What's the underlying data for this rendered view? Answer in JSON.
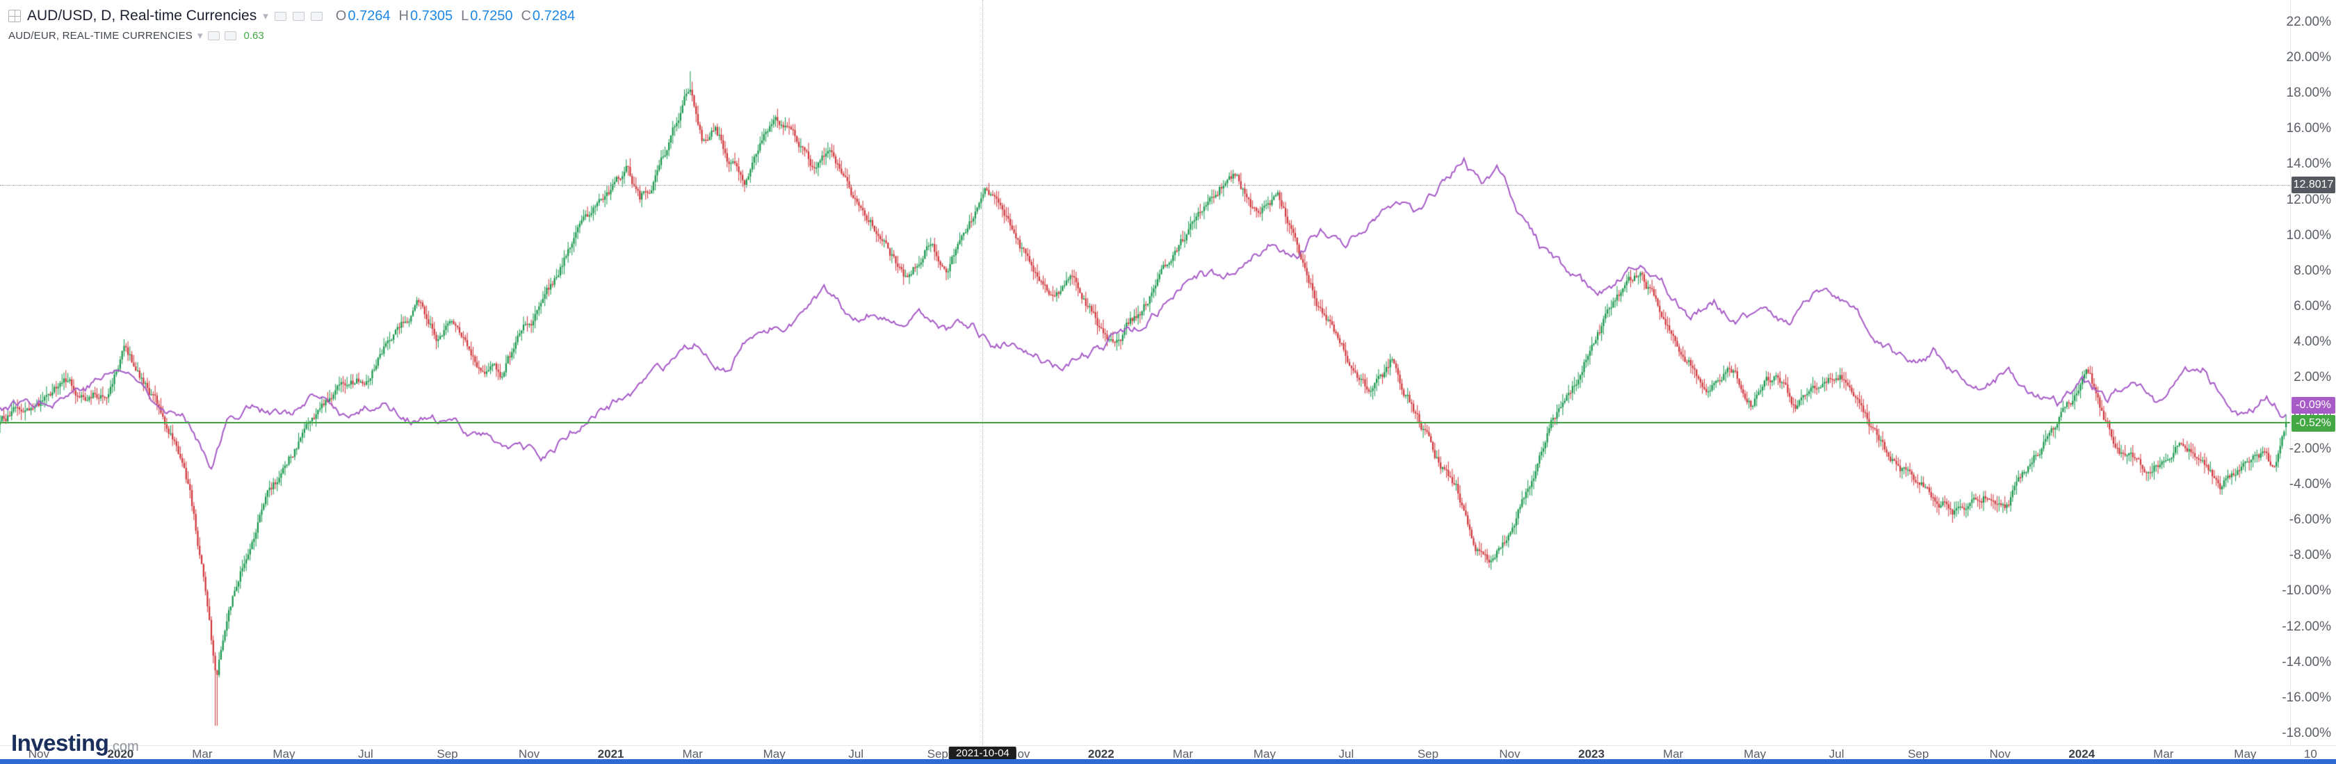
{
  "app": {
    "bottom_bar_color": "#2e6ad1"
  },
  "legend": {
    "primary": {
      "title": "AUD/USD, D, Real-time Currencies",
      "ohlc": {
        "o_label": "O",
        "o_value": "0.7264",
        "h_label": "H",
        "h_value": "0.7305",
        "l_label": "L",
        "l_value": "0.7250",
        "c_label": "C",
        "c_value": "0.7284"
      },
      "ohlc_color": "#1e88e5"
    },
    "compare": {
      "title": "AUD/EUR, REAL-TIME CURRENCIES",
      "value": "0.63",
      "value_color": "#43a843"
    }
  },
  "footer": {
    "logo_main": "Investing",
    "logo_suffix": ".com"
  },
  "icons": {
    "chevron_glyph": "▾"
  },
  "chart_data": {
    "type": "candlestick",
    "description": "AUD/USD daily candlesticks compared with AUD/EUR line, percentage scale, Nov 2019 - Jun 2024",
    "y_axis": {
      "unit": "%",
      "max_pct": 23.2,
      "min_pct": -18.7,
      "ticks": [
        {
          "label": "22.00%",
          "value": 22
        },
        {
          "label": "20.00%",
          "value": 20
        },
        {
          "label": "18.00%",
          "value": 18
        },
        {
          "label": "16.00%",
          "value": 16
        },
        {
          "label": "14.00%",
          "value": 14
        },
        {
          "label": "12.00%",
          "value": 12
        },
        {
          "label": "10.00%",
          "value": 10
        },
        {
          "label": "8.00%",
          "value": 8
        },
        {
          "label": "6.00%",
          "value": 6
        },
        {
          "label": "4.00%",
          "value": 4
        },
        {
          "label": "2.00%",
          "value": 2
        },
        {
          "label": "0.00%",
          "value": 0
        },
        {
          "label": "-2.00%",
          "value": -2
        },
        {
          "label": "-4.00%",
          "value": -4
        },
        {
          "label": "-6.00%",
          "value": -6
        },
        {
          "label": "-8.00%",
          "value": -8
        },
        {
          "label": "-10.00%",
          "value": -10
        },
        {
          "label": "-12.00%",
          "value": -12
        },
        {
          "label": "-14.00%",
          "value": -14
        },
        {
          "label": "-16.00%",
          "value": -16
        },
        {
          "label": "-18.00%",
          "value": -18
        }
      ]
    },
    "x_axis": {
      "min_month": -0.95,
      "max_month": 55.1,
      "month_index_epoch": "2019-11",
      "ticks": [
        {
          "label": "Nov",
          "m": 0
        },
        {
          "label": "2020",
          "m": 2
        },
        {
          "label": "Mar",
          "m": 4
        },
        {
          "label": "May",
          "m": 6
        },
        {
          "label": "Jul",
          "m": 8
        },
        {
          "label": "Sep",
          "m": 10
        },
        {
          "label": "Nov",
          "m": 12
        },
        {
          "label": "2021",
          "m": 14
        },
        {
          "label": "Mar",
          "m": 16
        },
        {
          "label": "May",
          "m": 18
        },
        {
          "label": "Jul",
          "m": 20
        },
        {
          "label": "Sep",
          "m": 22
        },
        {
          "label": "Nov",
          "m": 24
        },
        {
          "label": "2022",
          "m": 26
        },
        {
          "label": "Mar",
          "m": 28
        },
        {
          "label": "May",
          "m": 30
        },
        {
          "label": "Jul",
          "m": 32
        },
        {
          "label": "Sep",
          "m": 34
        },
        {
          "label": "Nov",
          "m": 36
        },
        {
          "label": "2023",
          "m": 38
        },
        {
          "label": "Mar",
          "m": 40
        },
        {
          "label": "May",
          "m": 42
        },
        {
          "label": "Jul",
          "m": 44
        },
        {
          "label": "Sep",
          "m": 46
        },
        {
          "label": "Nov",
          "m": 48
        },
        {
          "label": "2024",
          "m": 50
        },
        {
          "label": "Mar",
          "m": 52
        },
        {
          "label": "May",
          "m": 54
        },
        {
          "label": "10",
          "m": 55.6
        }
      ]
    },
    "crosshair": {
      "m": 23.1,
      "date_label": "2021-10-04",
      "label_bg": "#1e1e1e"
    },
    "price_lines": [
      {
        "id": "level-line",
        "value_pct": 12.8,
        "axis_label": "12.8017",
        "line_style": "dotted",
        "color": "#9aa0a6",
        "label_bg": "#55585e",
        "badge_offset_y": 0
      },
      {
        "id": "last-close",
        "value_pct": -0.52,
        "axis_label": "-0.52%",
        "line_style": "solid",
        "color": "#43a843",
        "label_bg": "#43a843",
        "badge_offset_y": 2
      }
    ],
    "axis_badges": [
      {
        "id": "compare-last",
        "value_pct": -0.09,
        "label": "-0.09%",
        "bg": "#a75bc7",
        "badge_offset_y": -13
      }
    ],
    "bar_count": 1180,
    "series": [
      {
        "name": "AUD/USD",
        "style": "candles",
        "up_color": "#149649",
        "down_color": "#cf3338",
        "last_value_pct": -0.52,
        "keypoints_pct": [
          [
            -1.0,
            -0.3
          ],
          [
            0,
            0.2
          ],
          [
            0.7,
            1.8
          ],
          [
            1.2,
            0.6
          ],
          [
            1.7,
            1.4
          ],
          [
            2.1,
            3.6
          ],
          [
            2.5,
            2.0
          ],
          [
            2.9,
            0.2
          ],
          [
            3.3,
            -1.4
          ],
          [
            3.7,
            -4.5
          ],
          [
            4.05,
            -9.5
          ],
          [
            4.35,
            -15.3
          ],
          [
            4.6,
            -11.5
          ],
          [
            5.0,
            -8.6
          ],
          [
            5.5,
            -5.2
          ],
          [
            6.0,
            -3.2
          ],
          [
            6.5,
            -1.2
          ],
          [
            7.0,
            0.6
          ],
          [
            7.5,
            1.6
          ],
          [
            8.0,
            2.2
          ],
          [
            8.6,
            4.4
          ],
          [
            9.3,
            6.4
          ],
          [
            9.8,
            4.2
          ],
          [
            10.2,
            5.2
          ],
          [
            10.8,
            3.0
          ],
          [
            11.3,
            2.2
          ],
          [
            11.9,
            4.8
          ],
          [
            12.4,
            6.2
          ],
          [
            13.0,
            9.6
          ],
          [
            13.6,
            11.2
          ],
          [
            14.1,
            12.8
          ],
          [
            14.4,
            13.6
          ],
          [
            14.7,
            11.8
          ],
          [
            15.1,
            13.2
          ],
          [
            15.6,
            16.2
          ],
          [
            15.95,
            18.4
          ],
          [
            16.25,
            15.2
          ],
          [
            16.55,
            16.4
          ],
          [
            16.9,
            14.2
          ],
          [
            17.3,
            13.2
          ],
          [
            17.7,
            15.4
          ],
          [
            18.1,
            16.2
          ],
          [
            18.5,
            15.6
          ],
          [
            19.0,
            13.6
          ],
          [
            19.4,
            14.4
          ],
          [
            20.0,
            11.6
          ],
          [
            20.6,
            10.0
          ],
          [
            21.2,
            7.4
          ],
          [
            21.7,
            9.2
          ],
          [
            22.2,
            8.2
          ],
          [
            22.8,
            10.6
          ],
          [
            23.2,
            12.4
          ],
          [
            23.7,
            10.4
          ],
          [
            24.2,
            8.4
          ],
          [
            24.8,
            6.6
          ],
          [
            25.3,
            7.6
          ],
          [
            25.9,
            5.0
          ],
          [
            26.3,
            3.8
          ],
          [
            27.0,
            5.8
          ],
          [
            27.7,
            8.2
          ],
          [
            28.3,
            10.4
          ],
          [
            28.9,
            12.6
          ],
          [
            29.3,
            13.4
          ],
          [
            29.8,
            11.0
          ],
          [
            30.3,
            12.2
          ],
          [
            30.9,
            8.6
          ],
          [
            31.5,
            5.2
          ],
          [
            32.1,
            2.6
          ],
          [
            32.6,
            0.8
          ],
          [
            33.1,
            2.8
          ],
          [
            33.6,
            0.4
          ],
          [
            34.2,
            -2.6
          ],
          [
            34.7,
            -4.4
          ],
          [
            35.2,
            -7.4
          ],
          [
            35.6,
            -8.3
          ],
          [
            36.0,
            -6.8
          ],
          [
            36.5,
            -4.0
          ],
          [
            37.0,
            -0.8
          ],
          [
            37.6,
            1.6
          ],
          [
            38.1,
            4.4
          ],
          [
            38.7,
            6.6
          ],
          [
            39.2,
            7.6
          ],
          [
            39.8,
            5.4
          ],
          [
            40.3,
            3.2
          ],
          [
            40.9,
            1.2
          ],
          [
            41.4,
            2.8
          ],
          [
            41.9,
            0.6
          ],
          [
            42.5,
            2.2
          ],
          [
            43.0,
            0.2
          ],
          [
            43.6,
            1.6
          ],
          [
            44.1,
            2.4
          ],
          [
            44.7,
            -0.4
          ],
          [
            45.3,
            -2.4
          ],
          [
            45.9,
            -3.8
          ],
          [
            46.5,
            -4.8
          ],
          [
            47.1,
            -5.8
          ],
          [
            47.6,
            -4.6
          ],
          [
            48.1,
            -5.4
          ],
          [
            48.7,
            -3.0
          ],
          [
            49.3,
            -0.8
          ],
          [
            49.9,
            0.8
          ],
          [
            50.2,
            2.0
          ],
          [
            50.6,
            -0.6
          ],
          [
            51.1,
            -2.6
          ],
          [
            51.7,
            -3.4
          ],
          [
            52.3,
            -1.6
          ],
          [
            52.9,
            -2.8
          ],
          [
            53.4,
            -4.4
          ],
          [
            53.9,
            -3.0
          ],
          [
            54.4,
            -2.2
          ],
          [
            54.7,
            -3.2
          ],
          [
            55.0,
            -0.52
          ]
        ]
      },
      {
        "name": "AUD/EUR",
        "style": "line",
        "color": "#a75bc7",
        "last_value_pct": -0.09,
        "keypoints_pct": [
          [
            -1.0,
            0.3
          ],
          [
            0,
            0.8
          ],
          [
            1.0,
            1.6
          ],
          [
            2.0,
            2.5
          ],
          [
            2.6,
            1.4
          ],
          [
            3.2,
            0.4
          ],
          [
            3.8,
            -0.8
          ],
          [
            4.2,
            -2.6
          ],
          [
            4.6,
            -0.4
          ],
          [
            5.2,
            0.6
          ],
          [
            6.0,
            -0.2
          ],
          [
            6.8,
            0.6
          ],
          [
            7.6,
            -0.4
          ],
          [
            8.4,
            0.6
          ],
          [
            9.2,
            -0.2
          ],
          [
            10.0,
            -0.8
          ],
          [
            10.8,
            -1.2
          ],
          [
            11.6,
            -1.8
          ],
          [
            12.3,
            -2.8
          ],
          [
            13.0,
            -1.2
          ],
          [
            13.8,
            0.2
          ],
          [
            14.6,
            1.2
          ],
          [
            15.4,
            2.2
          ],
          [
            16.2,
            3.6
          ],
          [
            16.8,
            2.8
          ],
          [
            17.4,
            4.2
          ],
          [
            18.0,
            4.8
          ],
          [
            18.6,
            5.6
          ],
          [
            19.2,
            6.6
          ],
          [
            19.8,
            5.4
          ],
          [
            20.4,
            5.9
          ],
          [
            21.0,
            4.6
          ],
          [
            21.6,
            5.2
          ],
          [
            22.2,
            4.4
          ],
          [
            22.8,
            5.0
          ],
          [
            23.4,
            3.8
          ],
          [
            24.0,
            4.2
          ],
          [
            24.6,
            3.2
          ],
          [
            25.2,
            2.6
          ],
          [
            26.0,
            3.6
          ],
          [
            26.8,
            4.6
          ],
          [
            27.6,
            6.2
          ],
          [
            28.4,
            7.8
          ],
          [
            29.0,
            7.2
          ],
          [
            29.6,
            8.4
          ],
          [
            30.2,
            9.6
          ],
          [
            30.8,
            9.0
          ],
          [
            31.4,
            10.4
          ],
          [
            32.0,
            9.4
          ],
          [
            32.6,
            11.0
          ],
          [
            33.2,
            12.2
          ],
          [
            33.8,
            11.4
          ],
          [
            34.4,
            13.0
          ],
          [
            34.9,
            14.2
          ],
          [
            35.3,
            12.6
          ],
          [
            35.7,
            13.4
          ],
          [
            36.2,
            11.0
          ],
          [
            36.8,
            9.0
          ],
          [
            37.4,
            7.6
          ],
          [
            38.0,
            6.4
          ],
          [
            38.6,
            7.4
          ],
          [
            39.2,
            8.2
          ],
          [
            39.8,
            7.0
          ],
          [
            40.4,
            5.6
          ],
          [
            41.0,
            6.4
          ],
          [
            41.6,
            5.2
          ],
          [
            42.2,
            6.0
          ],
          [
            42.8,
            5.0
          ],
          [
            43.4,
            6.6
          ],
          [
            44.0,
            6.0
          ],
          [
            44.6,
            4.8
          ],
          [
            45.2,
            3.6
          ],
          [
            45.8,
            2.6
          ],
          [
            46.4,
            3.4
          ],
          [
            47.0,
            2.2
          ],
          [
            47.6,
            1.4
          ],
          [
            48.2,
            2.4
          ],
          [
            48.8,
            1.2
          ],
          [
            49.4,
            0.4
          ],
          [
            50.0,
            1.6
          ],
          [
            50.6,
            0.6
          ],
          [
            51.2,
            1.4
          ],
          [
            51.8,
            0.4
          ],
          [
            52.4,
            1.8
          ],
          [
            53.0,
            2.4
          ],
          [
            53.5,
            0.8
          ],
          [
            54.0,
            0.2
          ],
          [
            54.5,
            1.0
          ],
          [
            55.0,
            -0.09
          ]
        ]
      }
    ]
  }
}
